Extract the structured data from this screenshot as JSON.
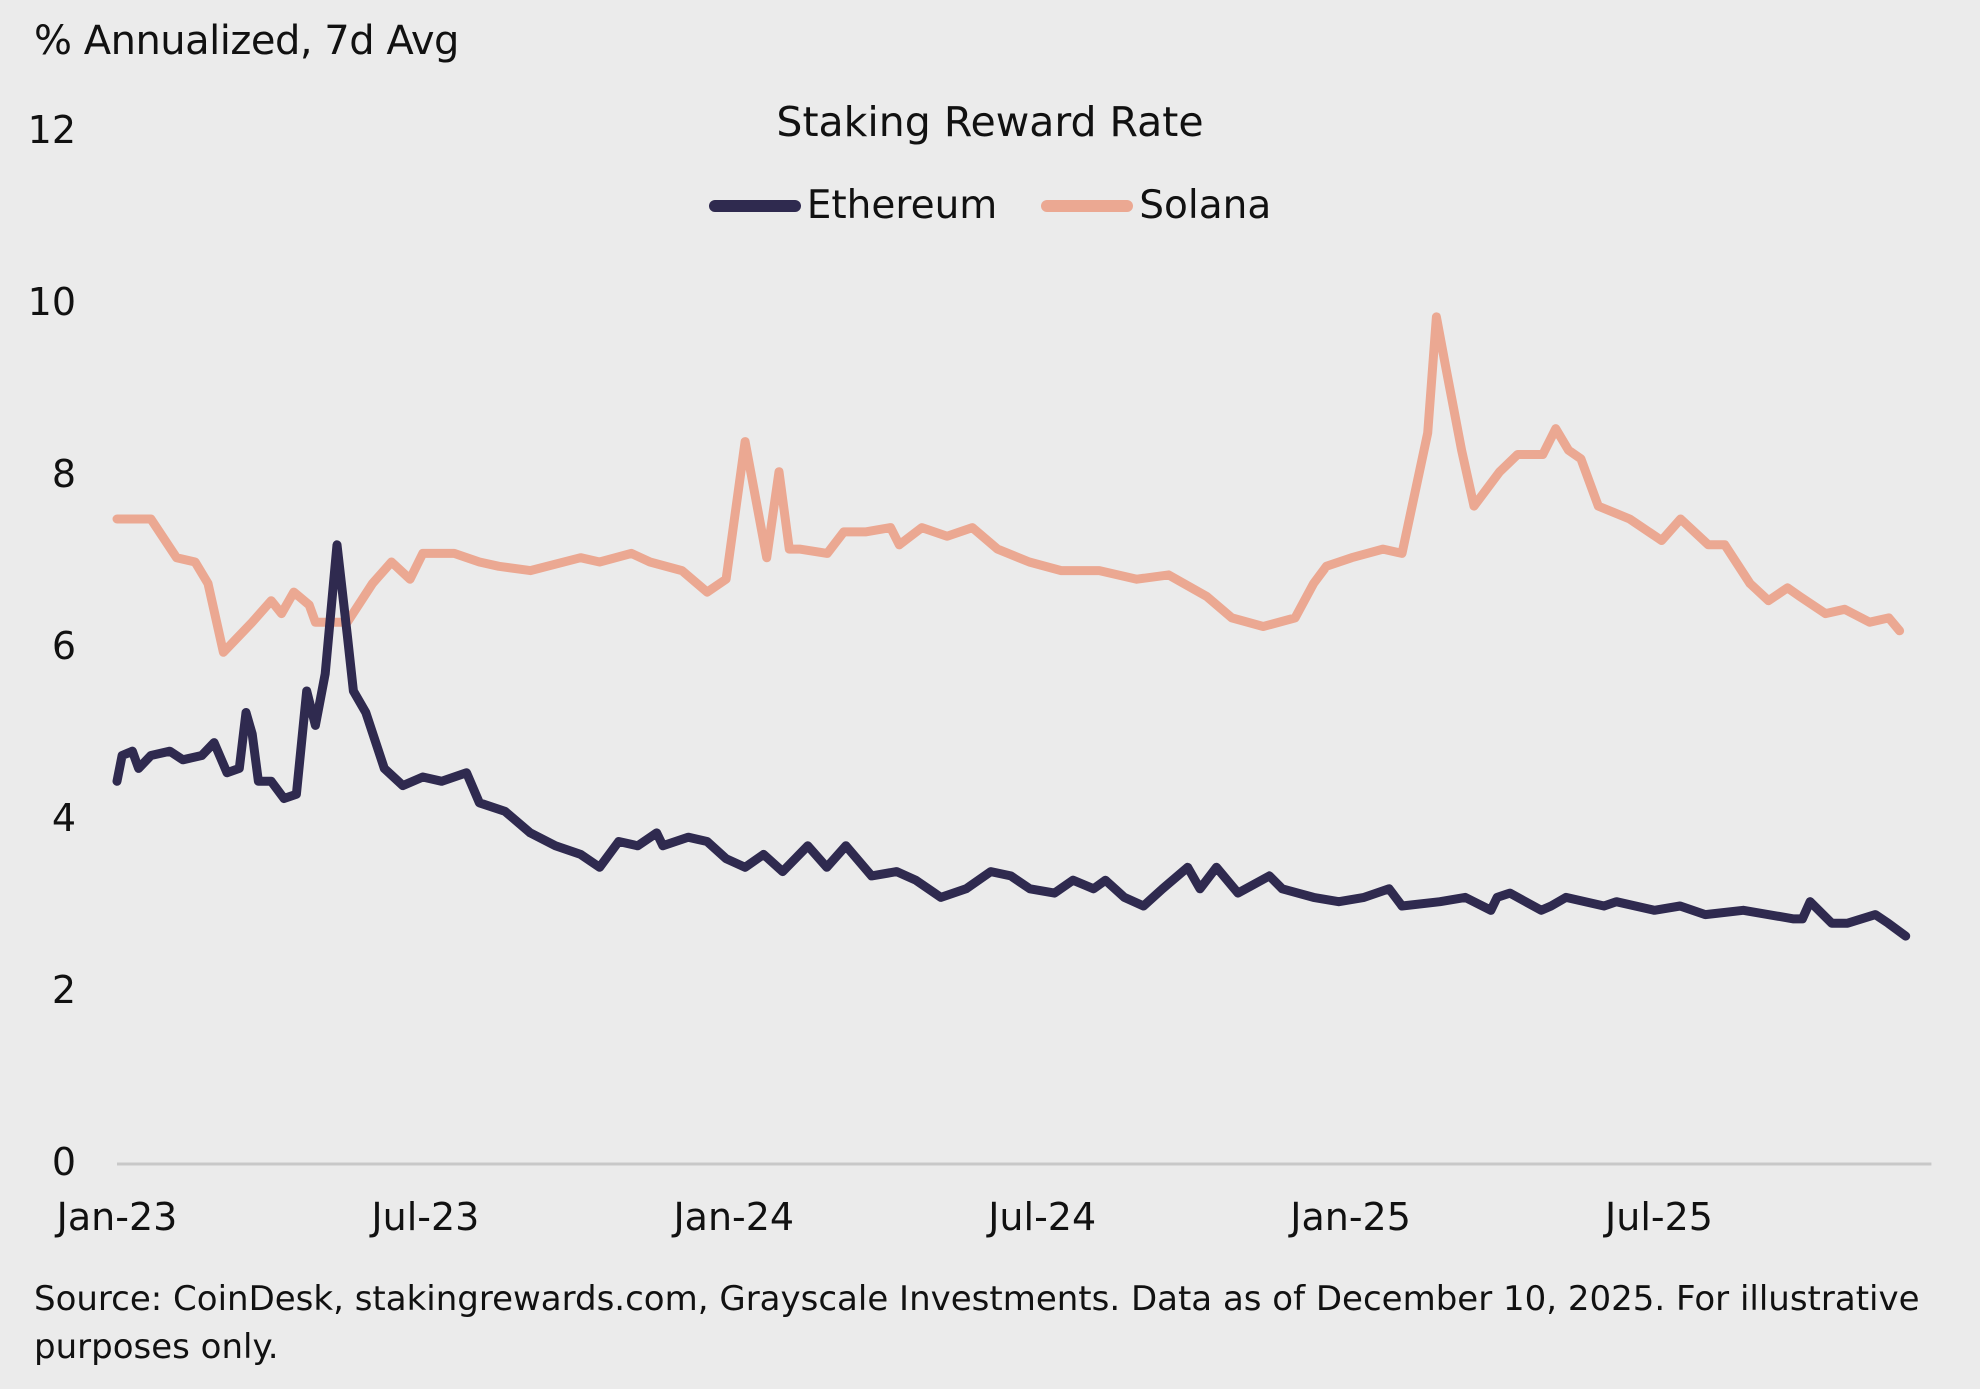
{
  "chart_data": {
    "type": "line",
    "title": "Staking Reward Rate",
    "ylabel": "% Annualized, 7d Avg",
    "xlabel": "",
    "ylim": [
      0,
      12
    ],
    "yticks": [
      "0",
      "2",
      "4",
      "6",
      "8",
      "10",
      "12"
    ],
    "x_unit": "months since Jan-2023",
    "xlim": [
      0,
      35.3
    ],
    "xticks": [
      {
        "label": "Jan-23",
        "t": 0
      },
      {
        "label": "Jul-23",
        "t": 6
      },
      {
        "label": "Jan-24",
        "t": 12
      },
      {
        "label": "Jul-24",
        "t": 18
      },
      {
        "label": "Jan-25",
        "t": 24
      },
      {
        "label": "Jul-25",
        "t": 30
      }
    ],
    "grid": false,
    "legend_position": "top-center",
    "series": [
      {
        "name": "Ethereum",
        "color": "#2f2a4f",
        "t": [
          0,
          0.1,
          0.3,
          0.42,
          0.66,
          1.03,
          1.28,
          1.65,
          1.89,
          2.14,
          2.38,
          2.51,
          2.63,
          2.75,
          3.0,
          3.25,
          3.49,
          3.69,
          3.86,
          4.05,
          4.28,
          4.48,
          4.6,
          4.84,
          5.2,
          5.56,
          5.95,
          6.32,
          6.8,
          7.05,
          7.55,
          8.04,
          8.53,
          9.02,
          9.39,
          9.76,
          10.13,
          10.5,
          10.62,
          11.11,
          11.48,
          11.85,
          12.22,
          12.58,
          12.95,
          13.44,
          13.81,
          14.18,
          14.68,
          15.17,
          15.54,
          16.03,
          16.52,
          17.0,
          17.39,
          17.76,
          18.24,
          18.6,
          19.0,
          19.23,
          19.6,
          19.97,
          20.34,
          20.83,
          21.07,
          21.39,
          21.81,
          22.42,
          22.67,
          23.28,
          23.77,
          24.26,
          24.75,
          25.0,
          25.74,
          26.23,
          26.73,
          26.85,
          27.1,
          27.71,
          27.9,
          28.19,
          28.93,
          29.17,
          29.91,
          30.41,
          30.9,
          31.64,
          32.62,
          32.79,
          32.94,
          33.36,
          33.67,
          34.21,
          34.46,
          34.8
        ],
        "values": [
          4.45,
          4.75,
          4.8,
          4.6,
          4.75,
          4.8,
          4.7,
          4.75,
          4.9,
          4.55,
          4.6,
          5.25,
          5.0,
          4.45,
          4.45,
          4.25,
          4.3,
          5.5,
          5.1,
          5.7,
          7.2,
          6.15,
          5.5,
          5.25,
          4.6,
          4.4,
          4.5,
          4.45,
          4.55,
          4.2,
          4.1,
          3.85,
          3.7,
          3.6,
          3.45,
          3.75,
          3.7,
          3.85,
          3.7,
          3.8,
          3.75,
          3.55,
          3.45,
          3.6,
          3.4,
          3.7,
          3.45,
          3.7,
          3.35,
          3.4,
          3.3,
          3.1,
          3.2,
          3.4,
          3.35,
          3.2,
          3.15,
          3.3,
          3.2,
          3.3,
          3.1,
          3.0,
          3.2,
          3.45,
          3.2,
          3.45,
          3.15,
          3.35,
          3.2,
          3.1,
          3.05,
          3.1,
          3.2,
          3.0,
          3.05,
          3.1,
          2.95,
          3.1,
          3.15,
          2.95,
          3.0,
          3.1,
          3.0,
          3.05,
          2.95,
          3.0,
          2.9,
          2.95,
          2.85,
          2.85,
          3.05,
          2.8,
          2.8,
          2.9,
          2.8,
          2.65
        ]
      },
      {
        "name": "Solana",
        "color": "#eba892",
        "t": [
          0,
          0.66,
          1.16,
          1.52,
          1.77,
          2.07,
          2.63,
          3.0,
          3.2,
          3.44,
          3.74,
          3.86,
          4.48,
          4.97,
          5.34,
          5.7,
          5.95,
          6.56,
          7.05,
          7.43,
          8.04,
          9.02,
          9.39,
          10.01,
          10.37,
          10.99,
          11.48,
          11.85,
          12.22,
          12.64,
          12.88,
          13.08,
          13.28,
          13.82,
          14.14,
          14.56,
          15.05,
          15.22,
          15.66,
          16.15,
          16.64,
          17.13,
          17.75,
          18.37,
          19.11,
          19.84,
          20.46,
          21.2,
          21.69,
          22.3,
          22.92,
          23.28,
          23.53,
          24.02,
          24.63,
          25.0,
          25.5,
          25.67,
          25.84,
          26.16,
          26.4,
          26.9,
          27.25,
          27.74,
          27.99,
          28.24,
          28.48,
          28.82,
          29.43,
          30.05,
          30.42,
          30.96,
          31.28,
          31.77,
          32.13,
          32.5,
          32.74,
          33.24,
          33.61,
          34.1,
          34.47,
          34.68
        ],
        "values": [
          7.5,
          7.5,
          7.05,
          7.0,
          6.75,
          5.95,
          6.3,
          6.55,
          6.4,
          6.65,
          6.5,
          6.3,
          6.3,
          6.75,
          7.0,
          6.8,
          7.1,
          7.1,
          7.0,
          6.95,
          6.9,
          7.05,
          7.0,
          7.1,
          7.0,
          6.9,
          6.65,
          6.8,
          8.4,
          7.05,
          8.05,
          7.15,
          7.15,
          7.1,
          7.35,
          7.35,
          7.4,
          7.2,
          7.4,
          7.3,
          7.4,
          7.15,
          7.0,
          6.9,
          6.9,
          6.8,
          6.85,
          6.6,
          6.35,
          6.25,
          6.35,
          6.75,
          6.95,
          7.05,
          7.15,
          7.1,
          8.5,
          9.85,
          9.3,
          8.3,
          7.65,
          8.05,
          8.25,
          8.25,
          8.55,
          8.3,
          8.2,
          7.65,
          7.5,
          7.25,
          7.5,
          7.2,
          7.2,
          6.75,
          6.55,
          6.7,
          6.6,
          6.4,
          6.45,
          6.3,
          6.35,
          6.2
        ]
      }
    ]
  },
  "header": {
    "unit_label": "% Annualized, 7d Avg",
    "title": "Staking Reward Rate"
  },
  "legend": [
    {
      "label": "Ethereum",
      "color": "#2f2a4f"
    },
    {
      "label": "Solana",
      "color": "#eba892"
    }
  ],
  "footer": {
    "source": "Source: CoinDesk, stakingrewards.com, Grayscale Investments. Data as of December 10, 2025. For illustrative purposes only."
  }
}
